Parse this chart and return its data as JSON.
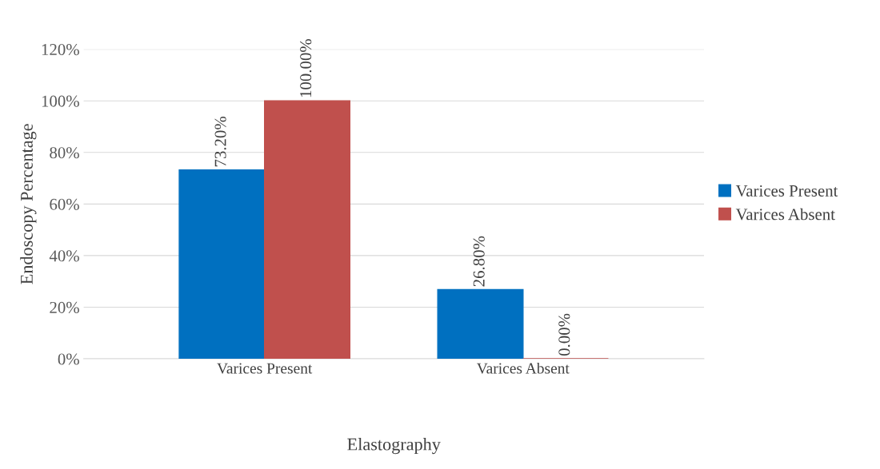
{
  "chart_data": {
    "type": "bar",
    "xlabel": "Elastography",
    "ylabel": "Endoscopy Percentage",
    "categories": [
      "Varices Present",
      "Varices Absent"
    ],
    "series": [
      {
        "name": "Varices Present",
        "color": "#0070c0",
        "values": [
          73.2,
          26.8
        ],
        "value_labels": [
          "73.20%",
          "26.80%"
        ]
      },
      {
        "name": "Varices Absent",
        "color": "#c0504d",
        "values": [
          100,
          0
        ],
        "value_labels": [
          "100.00%",
          "0.00%"
        ]
      }
    ],
    "ylim": [
      0,
      120
    ],
    "yticks": [
      {
        "value": 0,
        "label": "0%"
      },
      {
        "value": 20,
        "label": "20%"
      },
      {
        "value": 40,
        "label": "40%"
      },
      {
        "value": 60,
        "label": "60%"
      },
      {
        "value": 80,
        "label": "80%"
      },
      {
        "value": 100,
        "label": "100%"
      },
      {
        "value": 120,
        "label": "120%"
      }
    ],
    "grid": "y",
    "legend": "right"
  }
}
